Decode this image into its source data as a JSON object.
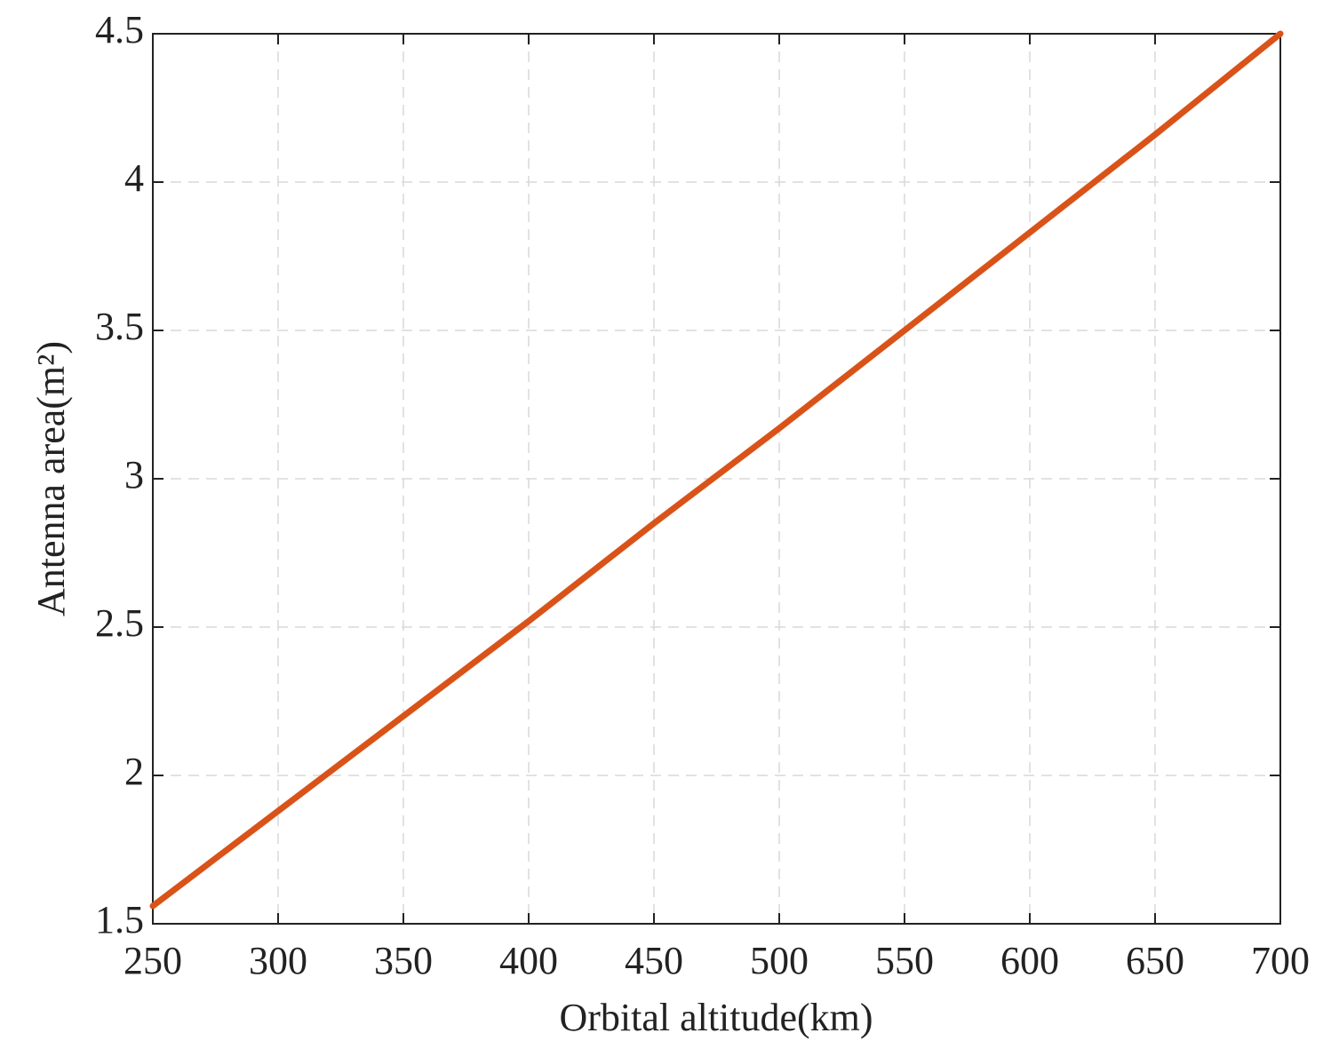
{
  "chart_data": {
    "type": "line",
    "x_label": "Orbital altitude(km)",
    "y_label": "Antenna area(m²)",
    "x": [
      250,
      300,
      350,
      400,
      450,
      500,
      550,
      600,
      650,
      700
    ],
    "series": [
      {
        "name": "Antenna area",
        "color": "#d95319",
        "values": [
          1.56,
          1.88,
          2.2,
          2.52,
          2.85,
          3.17,
          3.5,
          3.83,
          4.16,
          4.5
        ]
      }
    ],
    "xlim": [
      250,
      700
    ],
    "xticks": [
      250,
      300,
      350,
      400,
      450,
      500,
      550,
      600,
      650,
      700
    ],
    "ylim": [
      1.5,
      4.5
    ],
    "yticks": [
      1.5,
      2,
      2.5,
      3,
      3.5,
      4,
      4.5
    ],
    "grid": true
  }
}
